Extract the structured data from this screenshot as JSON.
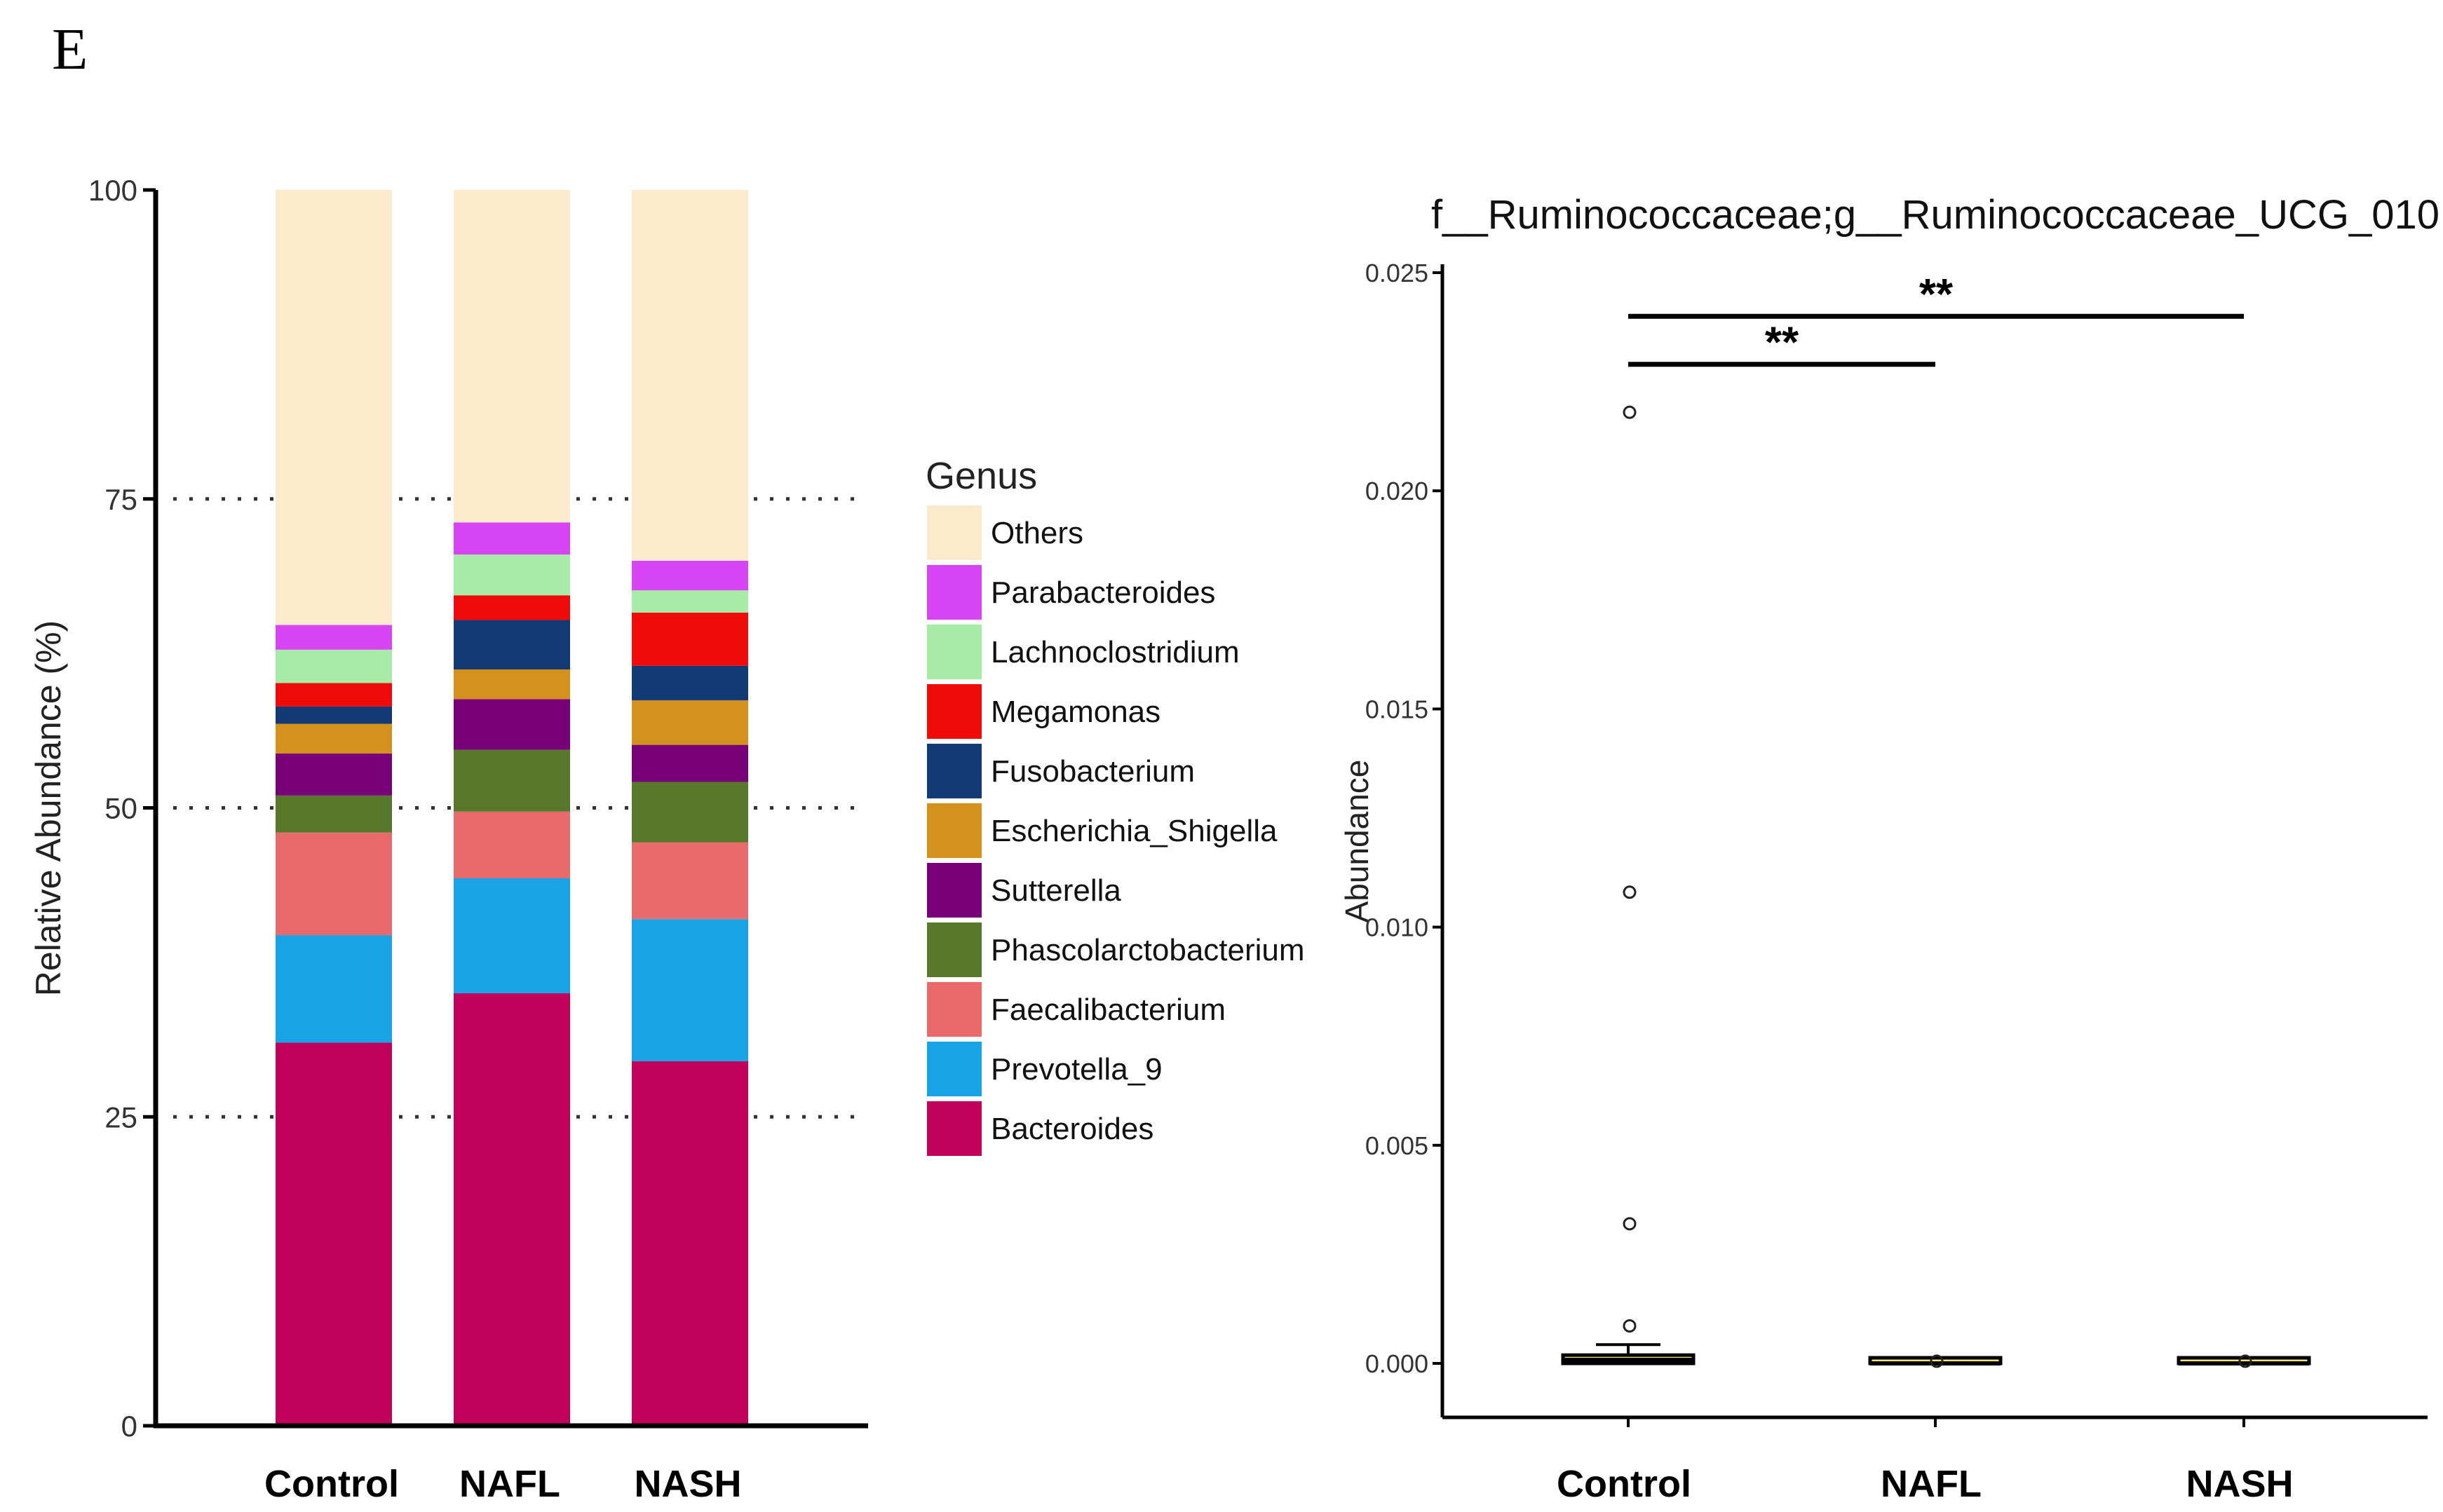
{
  "panel_label": "E",
  "chart_data": [
    {
      "type": "bar",
      "stacked": true,
      "ylabel": "Relative Abundance (%)",
      "ylim": [
        0,
        100
      ],
      "yticks": [
        0,
        25,
        50,
        75,
        100
      ],
      "grid": "dotted horizontal at 25, 50, 75",
      "categories": [
        "Control",
        "NAFL",
        "NASH"
      ],
      "legend": {
        "title": "Genus",
        "placement": "right"
      },
      "series": [
        {
          "name": "Bacteroides",
          "color": "#C0005A",
          "values": [
            31.0,
            35.0,
            29.5
          ]
        },
        {
          "name": "Prevotella_9",
          "color": "#18A3E6",
          "values": [
            8.7,
            9.3,
            11.5
          ]
        },
        {
          "name": "Faecalibacterium",
          "color": "#EA6A6C",
          "values": [
            8.3,
            5.4,
            6.2
          ]
        },
        {
          "name": "Phascolarctobacterium",
          "color": "#58792B",
          "values": [
            3.0,
            5.0,
            4.9
          ]
        },
        {
          "name": "Sutterella",
          "color": "#780078",
          "values": [
            3.4,
            4.1,
            3.0
          ]
        },
        {
          "name": "Escherichia_Shigella",
          "color": "#D4921C",
          "values": [
            2.4,
            2.4,
            3.6
          ]
        },
        {
          "name": "Fusobacterium",
          "color": "#123A74",
          "values": [
            1.4,
            4.0,
            2.8
          ]
        },
        {
          "name": "Megamonas",
          "color": "#F00A0A",
          "values": [
            1.9,
            2.0,
            4.3
          ]
        },
        {
          "name": "Lachnoclostridium",
          "color": "#A6ECA6",
          "values": [
            2.7,
            3.3,
            1.8
          ]
        },
        {
          "name": "Parabacteroides",
          "color": "#D644F4",
          "values": [
            2.0,
            2.6,
            2.4
          ]
        },
        {
          "name": "Others",
          "color": "#FDE9CB",
          "values": [
            35.2,
            26.9,
            30.0
          ]
        }
      ]
    },
    {
      "type": "box",
      "title": "f__Ruminococcaceae;g__Ruminococcaceae_UCG_010",
      "ylabel": "Abundance",
      "ylim": [
        0,
        0.025
      ],
      "yticks": [
        "0.000",
        "0.005",
        "0.010",
        "0.015",
        "0.020",
        "0.025"
      ],
      "categories": [
        "Control",
        "NAFL",
        "NASH"
      ],
      "boxes": [
        {
          "name": "Control",
          "q1": 0.0,
          "median": 8e-05,
          "q3": 0.00019,
          "whisker_low": 0.0,
          "whisker_high": 0.00043,
          "outliers": [
            0.00086,
            0.0032,
            0.0108,
            0.0218
          ],
          "fill": "#F5E07A"
        },
        {
          "name": "NAFL",
          "q1": 0.0,
          "median": 0.0,
          "q3": 2e-05,
          "whisker_low": 0.0,
          "whisker_high": 2e-05,
          "outliers": [
            5e-05
          ],
          "fill": "#F5E07A"
        },
        {
          "name": "NASH",
          "q1": 0.0,
          "median": 0.0,
          "q3": 2e-05,
          "whisker_low": 0.0,
          "whisker_high": 2e-05,
          "outliers": [
            5e-05
          ],
          "fill": "#F5E07A"
        }
      ],
      "significance": [
        {
          "from": "Control",
          "to": "NAFL",
          "label": "**",
          "y": 0.0229
        },
        {
          "from": "Control",
          "to": "NASH",
          "label": "**",
          "y": 0.024
        }
      ]
    }
  ]
}
